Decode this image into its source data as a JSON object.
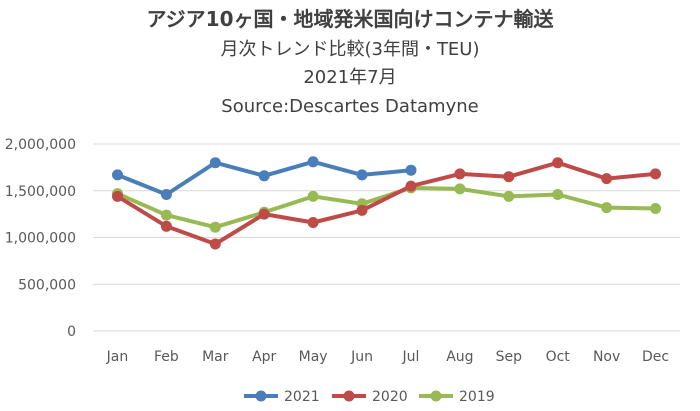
{
  "chart_data": {
    "type": "line",
    "title": "アジア10ヶ国・地域発米国向けコンテナ輸送",
    "subtitles": [
      "月次トレンド比較(3年間・TEU)",
      "2021年7月",
      "Source:Descartes Datamyne"
    ],
    "categories": [
      "Jan",
      "Feb",
      "Mar",
      "Apr",
      "May",
      "Jun",
      "Jul",
      "Aug",
      "Sep",
      "Oct",
      "Nov",
      "Dec"
    ],
    "ylim": [
      0,
      2000000
    ],
    "yticks": [
      {
        "value": 0,
        "label": "0"
      },
      {
        "value": 500000,
        "label": "500,000"
      },
      {
        "value": 1000000,
        "label": "1,000,000"
      },
      {
        "value": 1500000,
        "label": "1,500,000"
      },
      {
        "value": 2000000,
        "label": "2,000,000"
      }
    ],
    "grid": true,
    "legend_position": "bottom",
    "series": [
      {
        "name": "2021",
        "color": "#4a7ebb",
        "values": [
          1670000,
          1460000,
          1800000,
          1660000,
          1810000,
          1670000,
          1720000,
          null,
          null,
          null,
          null,
          null
        ]
      },
      {
        "name": "2020",
        "color": "#be4b48",
        "values": [
          1440000,
          1120000,
          930000,
          1250000,
          1160000,
          1290000,
          1550000,
          1680000,
          1650000,
          1800000,
          1630000,
          1680000
        ]
      },
      {
        "name": "2019",
        "color": "#98b954",
        "values": [
          1470000,
          1240000,
          1110000,
          1270000,
          1440000,
          1360000,
          1530000,
          1520000,
          1440000,
          1460000,
          1320000,
          1310000
        ]
      }
    ]
  }
}
